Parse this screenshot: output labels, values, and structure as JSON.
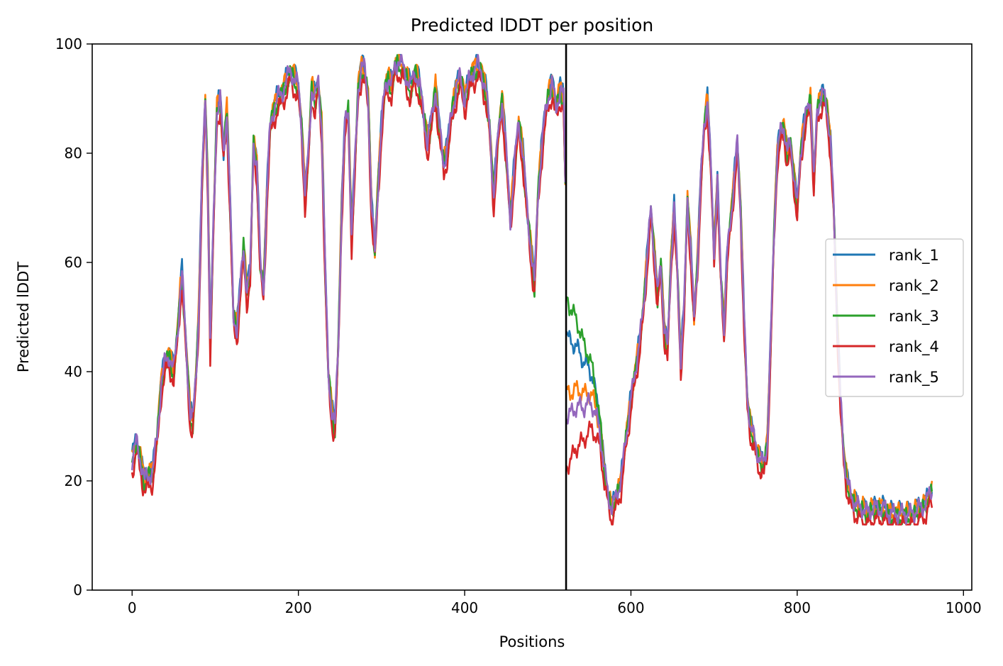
{
  "chart_data": {
    "type": "line",
    "title": "Predicted lDDT per position",
    "xlabel": "Positions",
    "ylabel": "Predicted lDDT",
    "xlim": [
      -48,
      1010
    ],
    "ylim": [
      0,
      100
    ],
    "xticks": [
      0,
      200,
      400,
      600,
      800,
      1000
    ],
    "yticks": [
      0,
      20,
      40,
      60,
      80,
      100
    ],
    "vline": 522,
    "legend_position": "center-right",
    "grid": false,
    "base_profile": [
      [
        0,
        24
      ],
      [
        5,
        27
      ],
      [
        10,
        24
      ],
      [
        15,
        20
      ],
      [
        20,
        21
      ],
      [
        25,
        22
      ],
      [
        30,
        28
      ],
      [
        35,
        38
      ],
      [
        40,
        42
      ],
      [
        45,
        43
      ],
      [
        50,
        40
      ],
      [
        55,
        48
      ],
      [
        58,
        55
      ],
      [
        60,
        58
      ],
      [
        63,
        50
      ],
      [
        66,
        42
      ],
      [
        70,
        32
      ],
      [
        73,
        31
      ],
      [
        77,
        40
      ],
      [
        80,
        50
      ],
      [
        84,
        75
      ],
      [
        88,
        90
      ],
      [
        91,
        75
      ],
      [
        94,
        45
      ],
      [
        98,
        68
      ],
      [
        102,
        88
      ],
      [
        106,
        90
      ],
      [
        110,
        80
      ],
      [
        114,
        88
      ],
      [
        118,
        70
      ],
      [
        122,
        50
      ],
      [
        126,
        48
      ],
      [
        130,
        55
      ],
      [
        134,
        63
      ],
      [
        138,
        55
      ],
      [
        142,
        58
      ],
      [
        146,
        82
      ],
      [
        150,
        78
      ],
      [
        154,
        60
      ],
      [
        158,
        55
      ],
      [
        162,
        72
      ],
      [
        166,
        85
      ],
      [
        170,
        88
      ],
      [
        175,
        90
      ],
      [
        180,
        91
      ],
      [
        185,
        93
      ],
      [
        190,
        95
      ],
      [
        195,
        94
      ],
      [
        200,
        92
      ],
      [
        204,
        85
      ],
      [
        208,
        72
      ],
      [
        212,
        80
      ],
      [
        216,
        92
      ],
      [
        220,
        90
      ],
      [
        224,
        93
      ],
      [
        228,
        85
      ],
      [
        232,
        60
      ],
      [
        236,
        40
      ],
      [
        240,
        33
      ],
      [
        244,
        30
      ],
      [
        248,
        45
      ],
      [
        252,
        70
      ],
      [
        256,
        85
      ],
      [
        260,
        88
      ],
      [
        264,
        65
      ],
      [
        268,
        78
      ],
      [
        272,
        92
      ],
      [
        276,
        96
      ],
      [
        280,
        95
      ],
      [
        284,
        90
      ],
      [
        288,
        70
      ],
      [
        292,
        62
      ],
      [
        296,
        75
      ],
      [
        300,
        85
      ],
      [
        304,
        92
      ],
      [
        308,
        94
      ],
      [
        312,
        92
      ],
      [
        316,
        96
      ],
      [
        320,
        97
      ],
      [
        325,
        96
      ],
      [
        330,
        94
      ],
      [
        335,
        92
      ],
      [
        340,
        95
      ],
      [
        345,
        93
      ],
      [
        350,
        88
      ],
      [
        355,
        82
      ],
      [
        360,
        86
      ],
      [
        365,
        92
      ],
      [
        370,
        84
      ],
      [
        375,
        78
      ],
      [
        380,
        82
      ],
      [
        385,
        88
      ],
      [
        390,
        92
      ],
      [
        395,
        94
      ],
      [
        400,
        90
      ],
      [
        405,
        93
      ],
      [
        410,
        95
      ],
      [
        415,
        96
      ],
      [
        420,
        95
      ],
      [
        425,
        92
      ],
      [
        430,
        85
      ],
      [
        435,
        72
      ],
      [
        440,
        83
      ],
      [
        445,
        90
      ],
      [
        450,
        80
      ],
      [
        455,
        68
      ],
      [
        460,
        78
      ],
      [
        465,
        86
      ],
      [
        470,
        80
      ],
      [
        475,
        70
      ],
      [
        480,
        62
      ],
      [
        484,
        56
      ],
      [
        488,
        72
      ],
      [
        492,
        80
      ],
      [
        496,
        86
      ],
      [
        500,
        90
      ],
      [
        505,
        93
      ],
      [
        510,
        88
      ],
      [
        515,
        92
      ],
      [
        519,
        90
      ],
      [
        521,
        75
      ]
    ],
    "segment2_profile": [
      [
        523,
        30
      ],
      [
        528,
        36
      ],
      [
        533,
        38
      ],
      [
        538,
        37
      ],
      [
        543,
        35
      ],
      [
        548,
        36
      ],
      [
        553,
        35
      ],
      [
        558,
        32
      ],
      [
        563,
        28
      ],
      [
        568,
        22
      ],
      [
        573,
        17
      ],
      [
        577,
        15
      ],
      [
        582,
        17
      ],
      [
        588,
        20
      ],
      [
        594,
        28
      ],
      [
        600,
        35
      ],
      [
        605,
        40
      ],
      [
        610,
        45
      ],
      [
        615,
        52
      ],
      [
        620,
        62
      ],
      [
        624,
        70
      ],
      [
        628,
        62
      ],
      [
        632,
        54
      ],
      [
        636,
        60
      ],
      [
        640,
        48
      ],
      [
        644,
        44
      ],
      [
        648,
        60
      ],
      [
        652,
        70
      ],
      [
        656,
        58
      ],
      [
        660,
        42
      ],
      [
        664,
        52
      ],
      [
        668,
        72
      ],
      [
        672,
        62
      ],
      [
        676,
        50
      ],
      [
        680,
        60
      ],
      [
        684,
        75
      ],
      [
        688,
        85
      ],
      [
        692,
        90
      ],
      [
        696,
        78
      ],
      [
        700,
        62
      ],
      [
        704,
        75
      ],
      [
        708,
        58
      ],
      [
        712,
        48
      ],
      [
        716,
        62
      ],
      [
        720,
        68
      ],
      [
        724,
        75
      ],
      [
        728,
        82
      ],
      [
        732,
        70
      ],
      [
        736,
        50
      ],
      [
        740,
        35
      ],
      [
        744,
        30
      ],
      [
        748,
        28
      ],
      [
        752,
        25
      ],
      [
        756,
        24
      ],
      [
        760,
        23
      ],
      [
        764,
        27
      ],
      [
        768,
        45
      ],
      [
        772,
        65
      ],
      [
        776,
        80
      ],
      [
        780,
        84
      ],
      [
        784,
        85
      ],
      [
        788,
        80
      ],
      [
        792,
        82
      ],
      [
        796,
        76
      ],
      [
        800,
        70
      ],
      [
        804,
        80
      ],
      [
        808,
        85
      ],
      [
        812,
        88
      ],
      [
        816,
        90
      ],
      [
        820,
        75
      ],
      [
        824,
        88
      ],
      [
        828,
        90
      ],
      [
        832,
        91
      ],
      [
        836,
        88
      ],
      [
        840,
        82
      ],
      [
        844,
        70
      ],
      [
        848,
        50
      ],
      [
        852,
        35
      ],
      [
        856,
        25
      ],
      [
        860,
        20
      ],
      [
        865,
        17
      ],
      [
        870,
        16
      ],
      [
        875,
        15
      ],
      [
        880,
        15
      ],
      [
        885,
        14
      ],
      [
        890,
        15
      ],
      [
        895,
        15
      ],
      [
        900,
        15
      ],
      [
        905,
        15
      ],
      [
        910,
        14
      ],
      [
        915,
        14
      ],
      [
        920,
        14
      ],
      [
        925,
        14
      ],
      [
        930,
        14
      ],
      [
        935,
        14
      ],
      [
        940,
        14
      ],
      [
        945,
        15
      ],
      [
        950,
        15
      ],
      [
        955,
        16
      ],
      [
        960,
        18
      ]
    ],
    "series": [
      {
        "name": "rank_1",
        "color": "#1f77b4",
        "offset": 0.6,
        "phase": 0.3,
        "seg2_start": 46
      },
      {
        "name": "rank_2",
        "color": "#ff7f0e",
        "offset": 0.3,
        "phase": 1.7,
        "seg2_start": 36
      },
      {
        "name": "rank_3",
        "color": "#2ca02c",
        "offset": -0.5,
        "phase": 2.9,
        "seg2_start": 54
      },
      {
        "name": "rank_4",
        "color": "#d62728",
        "offset": -2.2,
        "phase": 4.1,
        "seg2_start": 25
      },
      {
        "name": "rank_5",
        "color": "#9467bd",
        "offset": 0.0,
        "phase": 5.3,
        "seg2_start": 32
      }
    ]
  }
}
